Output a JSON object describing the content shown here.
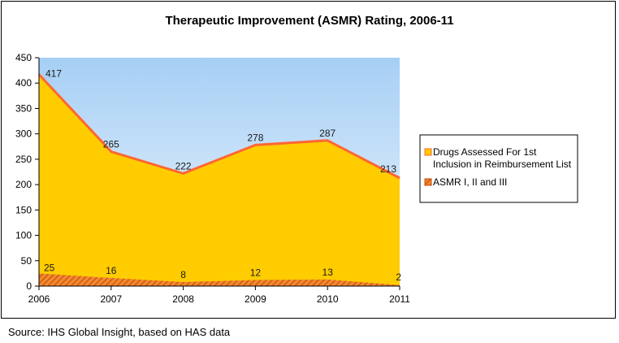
{
  "chart_data": {
    "type": "area",
    "title": "Therapeutic Improvement (ASMR) Rating, 2006-11",
    "xlabel": "",
    "ylabel": "",
    "categories": [
      "2006",
      "2007",
      "2008",
      "2009",
      "2010",
      "2011"
    ],
    "ylim": [
      0,
      450
    ],
    "yticks": [
      0,
      50,
      100,
      150,
      200,
      250,
      300,
      350,
      400,
      450
    ],
    "series": [
      {
        "name": "Drugs Assessed For 1st Inclusion in Reimbursement List",
        "values": [
          417,
          265,
          222,
          278,
          287,
          213
        ],
        "color": "#ffcc00",
        "line_color": "#ff6633"
      },
      {
        "name": "ASMR I, II and III",
        "values": [
          25,
          16,
          8,
          12,
          13,
          2
        ],
        "color": "#e8641b",
        "pattern": "hatched"
      }
    ],
    "legend_position": "right",
    "plot_background": "gradient light-blue",
    "grid": false
  },
  "legend": {
    "line1": "Drugs Assessed For 1st",
    "line2": "Inclusion in Reimbursement List",
    "asmr": "ASMR I, II and III"
  },
  "source": "Source: IHS Global Insight, based on HAS data"
}
